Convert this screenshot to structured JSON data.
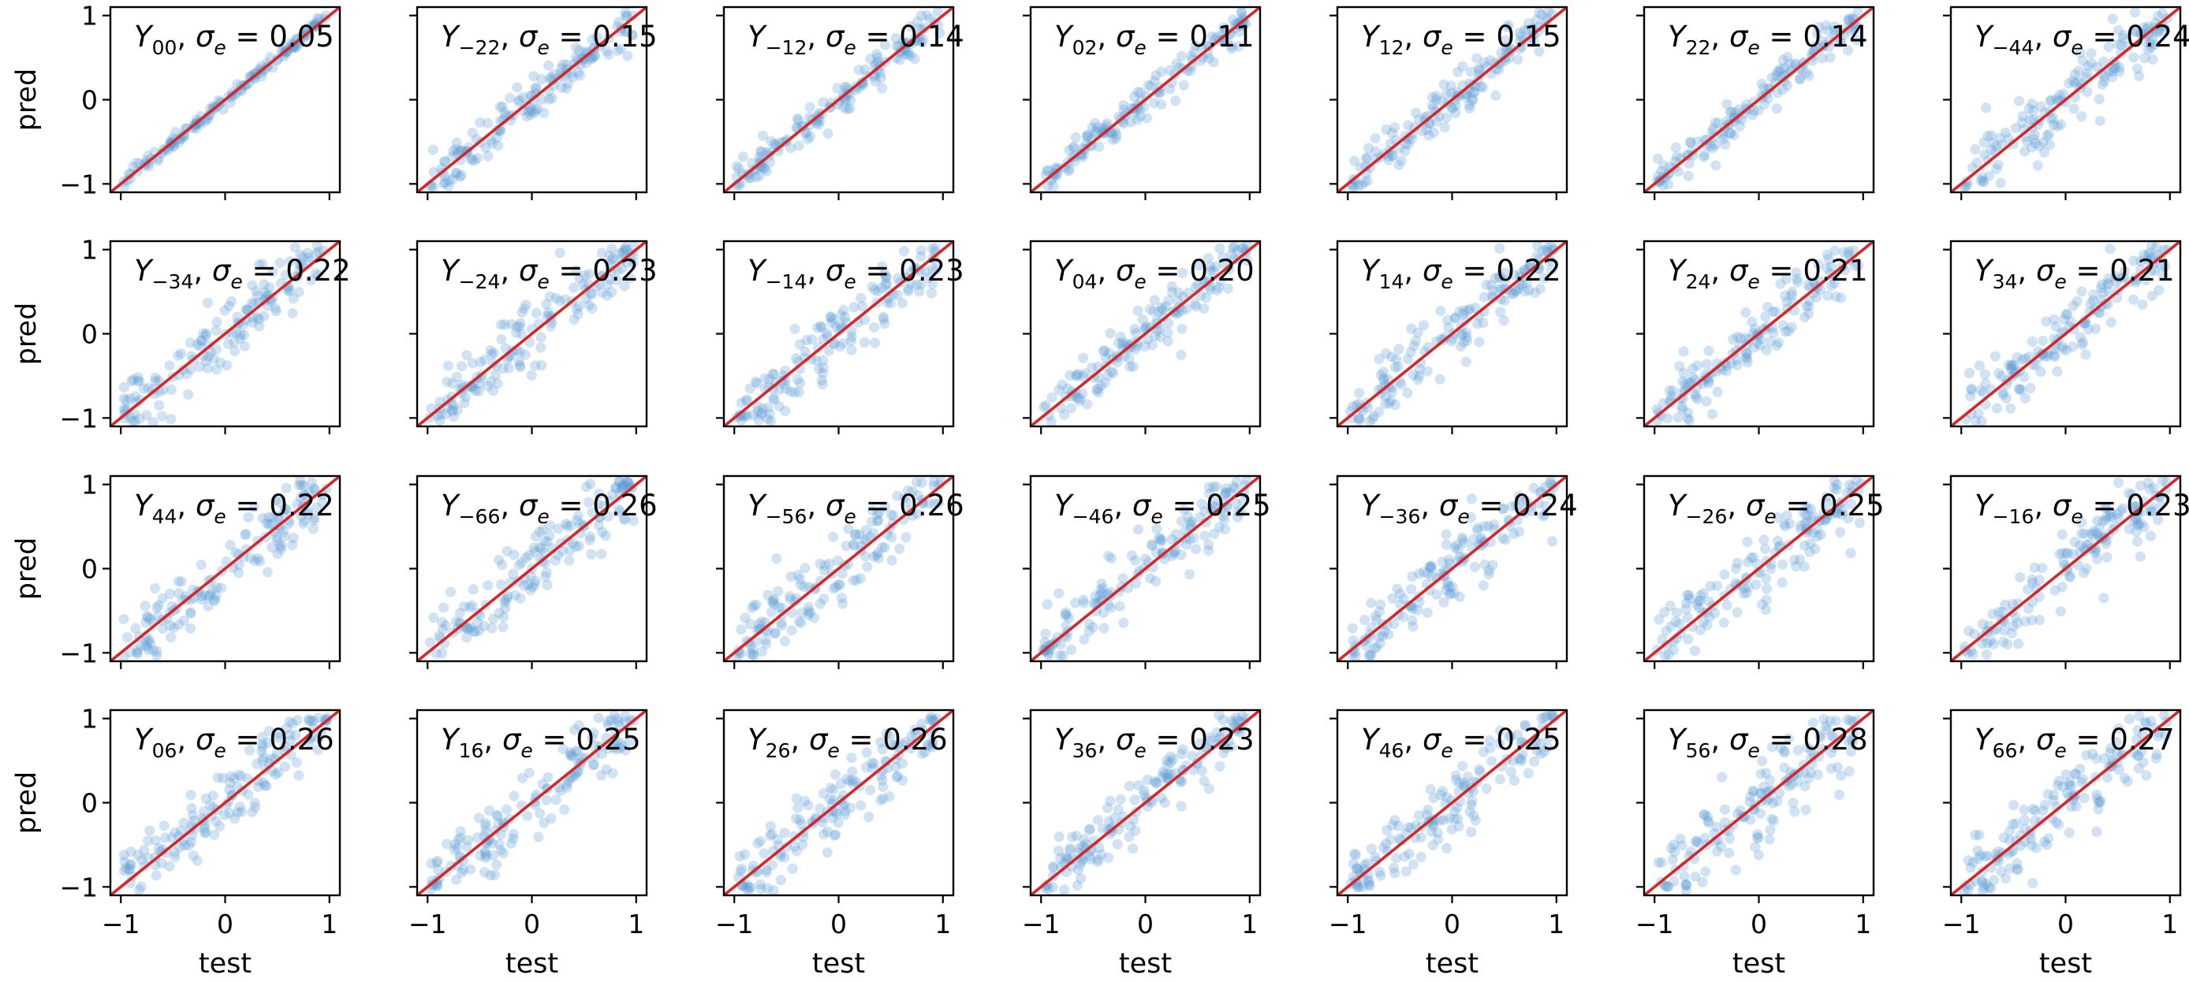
{
  "figure": {
    "y_label": "pred",
    "x_label": "test",
    "x_ticks": [
      "−1",
      "0",
      "1"
    ],
    "y_ticks": [
      "1",
      "0",
      "−1"
    ]
  },
  "chart_data": {
    "type": "scatter",
    "description_of_data": "Grid of 28 scatter panels (4 rows x 7 columns) of predicted vs test spherical-harmonic coefficients, each with a red identity line y = x.",
    "xlim": [
      -1.1,
      1.1
    ],
    "ylim": [
      -1.1,
      1.1
    ],
    "xlabel": "test",
    "ylabel": "pred",
    "point_color": "#5b9bd5",
    "point_opacity": 0.28,
    "line_color": "#d62728",
    "panels": [
      {
        "name": "Y",
        "sub": "00",
        "sigma": "0.05"
      },
      {
        "name": "Y",
        "sub": "−22",
        "sigma": "0.15"
      },
      {
        "name": "Y",
        "sub": "−12",
        "sigma": "0.14"
      },
      {
        "name": "Y",
        "sub": "02",
        "sigma": "0.11"
      },
      {
        "name": "Y",
        "sub": "12",
        "sigma": "0.15"
      },
      {
        "name": "Y",
        "sub": "22",
        "sigma": "0.14"
      },
      {
        "name": "Y",
        "sub": "−44",
        "sigma": "0.24"
      },
      {
        "name": "Y",
        "sub": "−34",
        "sigma": "0.22"
      },
      {
        "name": "Y",
        "sub": "−24",
        "sigma": "0.23"
      },
      {
        "name": "Y",
        "sub": "−14",
        "sigma": "0.23"
      },
      {
        "name": "Y",
        "sub": "04",
        "sigma": "0.20"
      },
      {
        "name": "Y",
        "sub": "14",
        "sigma": "0.22"
      },
      {
        "name": "Y",
        "sub": "24",
        "sigma": "0.21"
      },
      {
        "name": "Y",
        "sub": "34",
        "sigma": "0.21"
      },
      {
        "name": "Y",
        "sub": "44",
        "sigma": "0.22"
      },
      {
        "name": "Y",
        "sub": "−66",
        "sigma": "0.26"
      },
      {
        "name": "Y",
        "sub": "−56",
        "sigma": "0.26"
      },
      {
        "name": "Y",
        "sub": "−46",
        "sigma": "0.25"
      },
      {
        "name": "Y",
        "sub": "−36",
        "sigma": "0.24"
      },
      {
        "name": "Y",
        "sub": "−26",
        "sigma": "0.25"
      },
      {
        "name": "Y",
        "sub": "−16",
        "sigma": "0.23"
      },
      {
        "name": "Y",
        "sub": "06",
        "sigma": "0.26"
      },
      {
        "name": "Y",
        "sub": "16",
        "sigma": "0.25"
      },
      {
        "name": "Y",
        "sub": "26",
        "sigma": "0.26"
      },
      {
        "name": "Y",
        "sub": "36",
        "sigma": "0.23"
      },
      {
        "name": "Y",
        "sub": "46",
        "sigma": "0.25"
      },
      {
        "name": "Y",
        "sub": "56",
        "sigma": "0.28"
      },
      {
        "name": "Y",
        "sub": "66",
        "sigma": "0.27"
      }
    ],
    "points_per_panel": 150
  }
}
